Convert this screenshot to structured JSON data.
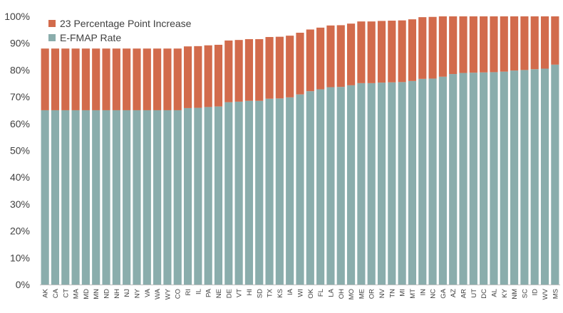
{
  "chart_data": {
    "type": "bar",
    "stacked": true,
    "title": "",
    "xlabel": "",
    "ylabel": "",
    "ylim": [
      0,
      100
    ],
    "yticks": [
      "0%",
      "10%",
      "20%",
      "30%",
      "40%",
      "50%",
      "60%",
      "70%",
      "80%",
      "90%",
      "100%"
    ],
    "grid": false,
    "legend_position": "top-left",
    "categories": [
      "AK",
      "CA",
      "CT",
      "MA",
      "MD",
      "MN",
      "ND",
      "NH",
      "NJ",
      "NY",
      "VA",
      "WA",
      "WY",
      "CO",
      "RI",
      "IL",
      "PA",
      "NE",
      "DE",
      "VT",
      "HI",
      "SD",
      "TX",
      "KS",
      "IA",
      "WI",
      "OK",
      "FL",
      "LA",
      "OH",
      "MO",
      "ME",
      "OR",
      "NV",
      "TN",
      "MI",
      "MT",
      "IN",
      "NC",
      "GA",
      "AZ",
      "AR",
      "UT",
      "DC",
      "AL",
      "KY",
      "NM",
      "SC",
      "ID",
      "WV",
      "MS"
    ],
    "series": [
      {
        "name": "E-FMAP Rate",
        "color": "#8aadac",
        "values": [
          65,
          65,
          65,
          65,
          65,
          65,
          65,
          65,
          65,
          65,
          65,
          65,
          65,
          65,
          65.8,
          65.9,
          66.2,
          66.4,
          68,
          68.2,
          68.5,
          68.5,
          69.3,
          69.4,
          69.8,
          70.9,
          72.1,
          72.8,
          73.6,
          73.7,
          74.3,
          75.1,
          75.1,
          75.3,
          75.4,
          75.5,
          75.9,
          76.7,
          76.8,
          77.5,
          78.5,
          78.9,
          79.0,
          79.1,
          79.2,
          79.4,
          79.8,
          80.0,
          80.3,
          80.5,
          82.0
        ]
      },
      {
        "name": "23 Percentage Point Increase",
        "color": "#d26b4c",
        "values": [
          23,
          23,
          23,
          23,
          23,
          23,
          23,
          23,
          23,
          23,
          23,
          23,
          23,
          23,
          23,
          23,
          23,
          23,
          23,
          23,
          23,
          23,
          23,
          23,
          23,
          23,
          23,
          23,
          23,
          23,
          23,
          23,
          23,
          23,
          23,
          23,
          23,
          23,
          23,
          22.5,
          21.5,
          21.1,
          21.0,
          20.9,
          20.8,
          20.6,
          20.2,
          20.0,
          19.7,
          19.5,
          18.0
        ]
      }
    ],
    "legend": [
      {
        "label": "23 Percentage Point Increase",
        "color": "#d26b4c"
      },
      {
        "label": "E-FMAP Rate",
        "color": "#8aadac"
      }
    ]
  }
}
